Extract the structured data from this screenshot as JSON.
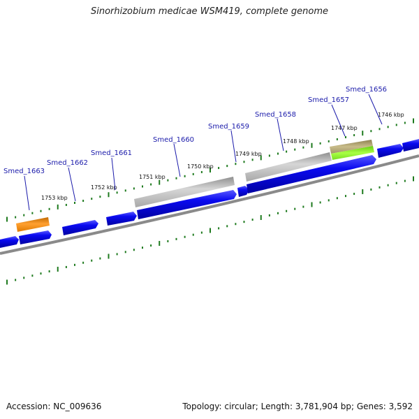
{
  "title": "Sinorhizobium medicae WSM419, complete genome",
  "footer": {
    "accession": "Accession: NC_009636",
    "topology": "Topology: circular; Length: 3,781,904 bp; Genes: 3,592"
  },
  "colors": {
    "cds_forward": "#0a0af0",
    "cds_reverse": "#0a0af0",
    "rna_orange": "#f08a10",
    "gray_gene": "#b4b4b4",
    "olive_gene": "#b2a878",
    "green_gene": "#88ee22",
    "backbone": "#8a8a8a",
    "ticks": "#1e7a1e",
    "label_link": "#1a1aaa"
  },
  "scale": {
    "ticks": [
      {
        "label": "1746 kbp",
        "kbp": 1746
      },
      {
        "label": "1747 kbp",
        "kbp": 1747
      },
      {
        "label": "1748 kbp",
        "kbp": 1748
      },
      {
        "label": "1749 kbp",
        "kbp": 1749
      },
      {
        "label": "1750 kbp",
        "kbp": 1750
      },
      {
        "label": "1751 kbp",
        "kbp": 1751
      },
      {
        "label": "1752 kbp",
        "kbp": 1752
      },
      {
        "label": "1753 kbp",
        "kbp": 1753
      }
    ]
  },
  "genes": [
    {
      "label": "Smed_1656"
    },
    {
      "label": "Smed_1657"
    },
    {
      "label": "Smed_1658"
    },
    {
      "label": "Smed_1659"
    },
    {
      "label": "Smed_1660"
    },
    {
      "label": "Smed_1661"
    },
    {
      "label": "Smed_1662"
    },
    {
      "label": "Smed_1663"
    }
  ]
}
